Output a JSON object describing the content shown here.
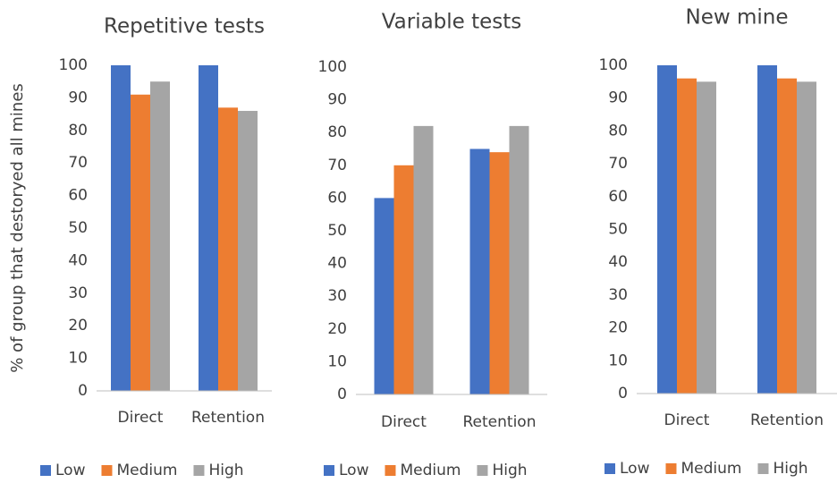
{
  "chart_data": [
    {
      "type": "bar",
      "title": "Repetitive tests",
      "y_label": "% of group that destoryed all mines",
      "categories": [
        "Direct",
        "Retention"
      ],
      "series": [
        {
          "name": "Low",
          "color": "#4472c4",
          "values": [
            100,
            100
          ]
        },
        {
          "name": "Medium",
          "color": "#ed7d31",
          "values": [
            91,
            87
          ]
        },
        {
          "name": "High",
          "color": "#a5a5a5",
          "values": [
            95,
            86
          ]
        }
      ],
      "ylim": [
        0,
        100
      ],
      "yticks": [
        0,
        10,
        20,
        30,
        40,
        50,
        60,
        70,
        80,
        90,
        100
      ],
      "legend": "bottom"
    },
    {
      "type": "bar",
      "title": "Variable tests",
      "categories": [
        "Direct",
        "Retention"
      ],
      "series": [
        {
          "name": "Low",
          "color": "#4472c4",
          "values": [
            60,
            75
          ]
        },
        {
          "name": "Medium",
          "color": "#ed7d31",
          "values": [
            70,
            74
          ]
        },
        {
          "name": "High",
          "color": "#a5a5a5",
          "values": [
            82,
            82
          ]
        }
      ],
      "ylim": [
        0,
        100
      ],
      "yticks": [
        0,
        10,
        20,
        30,
        40,
        50,
        60,
        70,
        80,
        90,
        100
      ],
      "legend": "bottom"
    },
    {
      "type": "bar",
      "title": "New mine",
      "categories": [
        "Direct",
        "Retention"
      ],
      "series": [
        {
          "name": "Low",
          "color": "#4472c4",
          "values": [
            100,
            100
          ]
        },
        {
          "name": "Medium",
          "color": "#ed7d31",
          "values": [
            96,
            96
          ]
        },
        {
          "name": "High",
          "color": "#a5a5a5",
          "values": [
            95,
            95
          ]
        }
      ],
      "ylim": [
        0,
        100
      ],
      "yticks": [
        0,
        10,
        20,
        30,
        40,
        50,
        60,
        70,
        80,
        90,
        100
      ],
      "legend": "bottom"
    }
  ]
}
